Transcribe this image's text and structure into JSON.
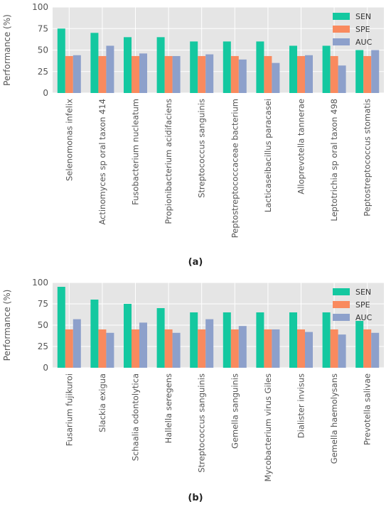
{
  "colors": {
    "SEN": "#14c8a0",
    "SPE": "#f98a5e",
    "AUC": "#8da0cb",
    "panel_bg": "#e5e5e5",
    "grid": "#ffffff",
    "text": "#555555"
  },
  "chart_data": [
    {
      "type": "bar",
      "panel_label": "(a)",
      "ylabel": "Performance (%)",
      "ylim": [
        0,
        100
      ],
      "yticks": [
        0,
        25,
        50,
        75,
        100
      ],
      "grid": true,
      "legend": "top-right",
      "categories": [
        "Selenomonas infelix",
        "Actinomyces sp oral taxon 414",
        "Fusobacterium nucleatum",
        "Propionibacterium acidifaciens",
        "Streptococcus sanguinis",
        "Peptostreptococcaceae bacterium",
        "Lacticaseibacillus paracasei",
        "Alloprevotella tannerae",
        "Leptotrichia sp oral taxon 498",
        "Peptostreptococcus stomatis"
      ],
      "series": [
        {
          "name": "SEN",
          "values": [
            75,
            70,
            65,
            65,
            60,
            60,
            60,
            55,
            55,
            50
          ]
        },
        {
          "name": "SPE",
          "values": [
            43,
            43,
            43,
            43,
            43,
            43,
            43,
            43,
            43,
            43
          ]
        },
        {
          "name": "AUC",
          "values": [
            44,
            55,
            46,
            43,
            45,
            39,
            35,
            44,
            32,
            50
          ]
        }
      ]
    },
    {
      "type": "bar",
      "panel_label": "(b)",
      "ylabel": "Performance (%)",
      "ylim": [
        0,
        100
      ],
      "yticks": [
        0,
        25,
        50,
        75,
        100
      ],
      "grid": true,
      "legend": "top-right",
      "categories": [
        "Fusarium fujikuroi",
        "Slackia exigua",
        "Schaalia odontolytica",
        "Hallella seregens",
        "Streptococcus sanguinis",
        "Gemella sanguinis",
        "Mycobacterium virus Giles",
        "Dialister invisus",
        "Gemella haemolysans",
        "Prevotella salivae"
      ],
      "series": [
        {
          "name": "SEN",
          "values": [
            95,
            80,
            75,
            70,
            65,
            65,
            65,
            65,
            65,
            55
          ]
        },
        {
          "name": "SPE",
          "values": [
            45,
            45,
            45,
            45,
            45,
            45,
            45,
            45,
            45,
            45
          ]
        },
        {
          "name": "AUC",
          "values": [
            57,
            41,
            53,
            41,
            57,
            49,
            45,
            42,
            39,
            41
          ]
        }
      ]
    }
  ]
}
